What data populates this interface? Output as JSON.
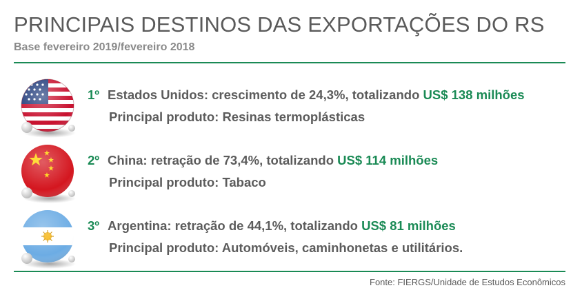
{
  "header": {
    "title": "PRINCIPAIS DESTINOS DAS EXPORTAÇÕES DO RS",
    "subtitle": "Base fevereiro 2019/fevereiro 2018"
  },
  "colors": {
    "accent": "#1a8a55",
    "text": "#5c5c5c",
    "muted": "#8a8a8a"
  },
  "entries": [
    {
      "rank": "1º",
      "text": "Estados Unidos: crescimento de 24,3%, totalizando ",
      "value": "US$ 138 milhões",
      "product": "Principal produto: Resinas termoplásticas",
      "flag_icon": "usa-flag-globe-icon"
    },
    {
      "rank": "2º",
      "text": "China: retração de 73,4%, totalizando ",
      "value": "US$ 114 milhões",
      "product": "Principal produto: Tabaco",
      "flag_icon": "china-flag-globe-icon"
    },
    {
      "rank": "3º",
      "text": "Argentina: retração de 44,1%, totalizando ",
      "value": "US$ 81 milhões",
      "product": "Principal produto: Automóveis, caminhonetas e utilitários.",
      "flag_icon": "argentina-flag-globe-icon"
    }
  ],
  "footer": {
    "source": "Fonte: FIERGS/Unidade de Estudos Econômicos"
  }
}
